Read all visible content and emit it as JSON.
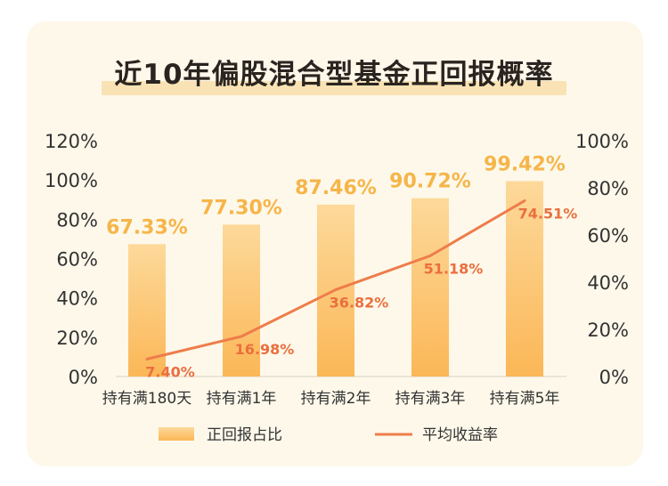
{
  "title": "近10年偏股混合型基金正回报概率",
  "colors": {
    "card_bg": "#fdf8ea",
    "bar_top": "#fdd99a",
    "bar_bottom": "#fbb757",
    "bar_label": "#f6b549",
    "line": "#ee7d4b",
    "line_label": "#ea6f3e",
    "axis_text": "#333333",
    "title_highlight": "#f9e2b4"
  },
  "chart_data": {
    "type": "bar",
    "title": "近10年偏股混合型基金正回报概率",
    "categories": [
      "持有满180天",
      "持有满1年",
      "持有满2年",
      "持有满3年",
      "持有满5年"
    ],
    "series": [
      {
        "name": "正回报占比",
        "type": "bar",
        "axis": "left",
        "values": [
          67.33,
          77.3,
          87.46,
          90.72,
          99.42
        ],
        "labels": [
          "67.33%",
          "77.30%",
          "87.46%",
          "90.72%",
          "99.42%"
        ]
      },
      {
        "name": "平均收益率",
        "type": "line",
        "axis": "right",
        "values": [
          7.4,
          16.98,
          36.82,
          51.18,
          74.51
        ],
        "labels": [
          "7.40%",
          "16.98%",
          "36.82%",
          "51.18%",
          "74.51%"
        ]
      }
    ],
    "y_left": {
      "range": [
        0,
        120
      ],
      "ticks": [
        "0%",
        "20%",
        "40%",
        "60%",
        "80%",
        "100%",
        "120%"
      ]
    },
    "y_right": {
      "range": [
        0,
        100
      ],
      "ticks": [
        "0%",
        "20%",
        "40%",
        "60%",
        "80%",
        "100%"
      ]
    },
    "grid": false,
    "legend_position": "bottom"
  }
}
